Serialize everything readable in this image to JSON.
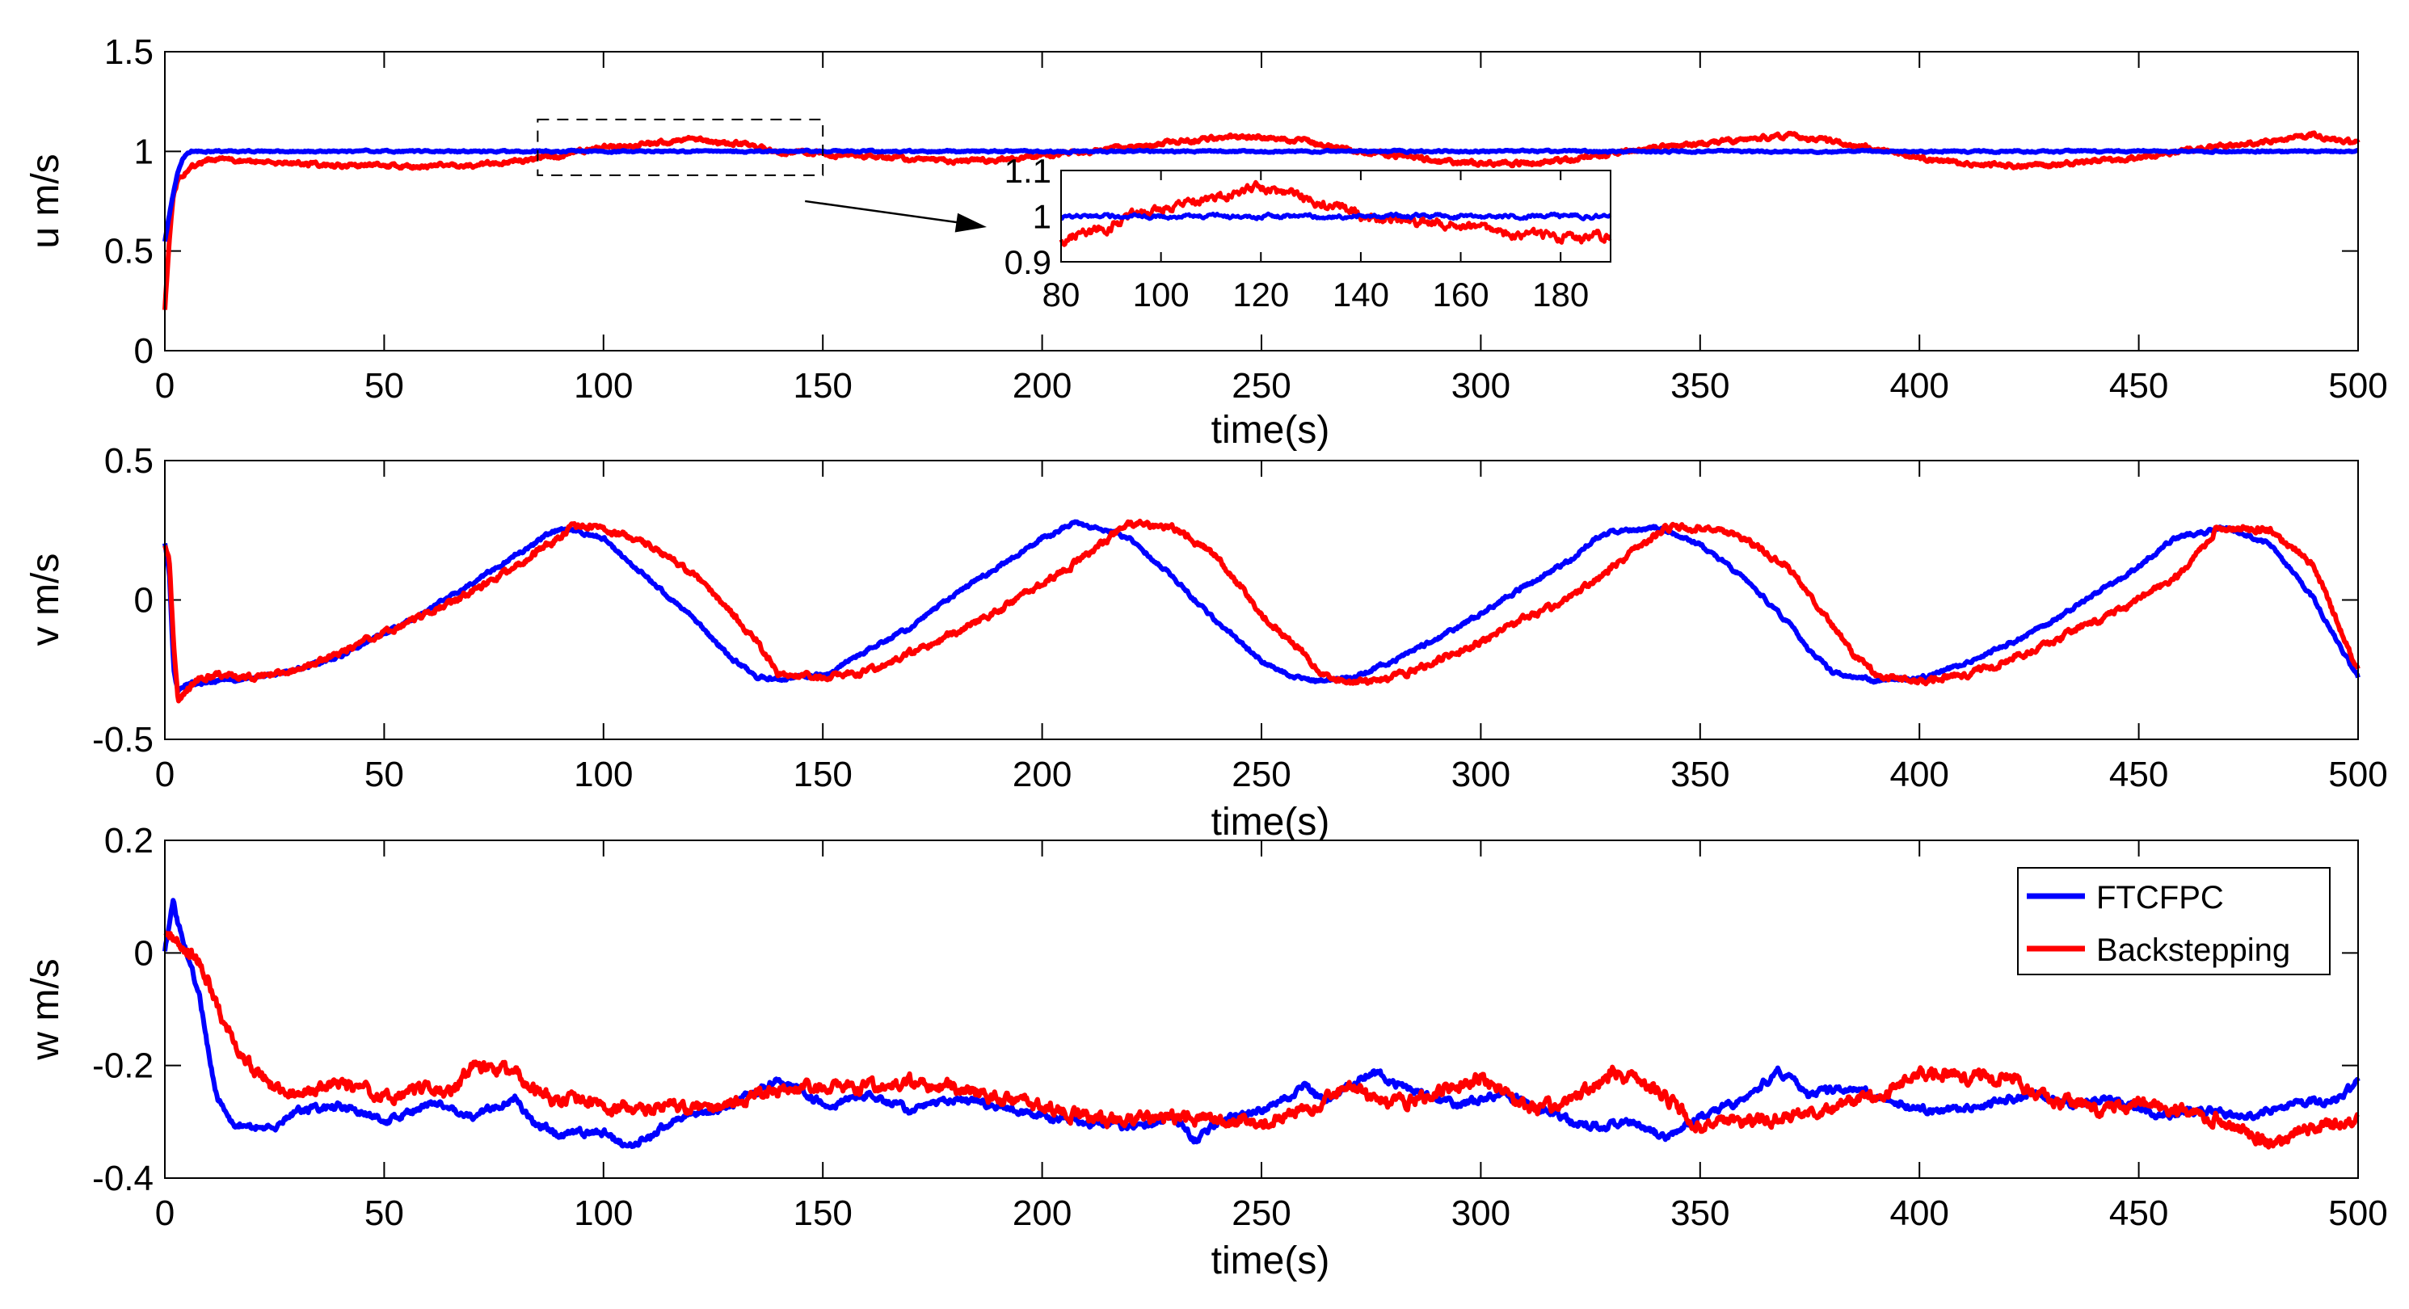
{
  "chart_data": [
    {
      "type": "line",
      "id": "u",
      "title": "",
      "xlabel": "time(s)",
      "ylabel": "u m/s",
      "xlim": [
        0,
        500
      ],
      "ylim": [
        0,
        1.5
      ],
      "xticks": [
        0,
        50,
        100,
        150,
        200,
        250,
        300,
        350,
        400,
        450,
        500
      ],
      "yticks": [
        "0",
        "0.5",
        "1",
        "1.5"
      ],
      "yticks_values": [
        0,
        0.5,
        1,
        1.5
      ],
      "series": [
        {
          "name": "FTCFPC",
          "color": "#0000ff",
          "x": [
            0,
            1,
            2,
            3,
            4,
            5,
            6,
            8,
            10,
            15,
            20,
            30,
            50,
            100,
            150,
            200,
            250,
            300,
            350,
            400,
            450,
            500
          ],
          "y": [
            0.55,
            0.68,
            0.8,
            0.9,
            0.96,
            0.99,
            1.0,
            1.0,
            1.0,
            1.0,
            1.0,
            1.0,
            1.0,
            1.0,
            1.0,
            1.0,
            1.0,
            1.0,
            1.0,
            1.0,
            1.0,
            1.0
          ],
          "noise": 0.004
        },
        {
          "name": "Backstepping",
          "color": "#ff0000",
          "x": [
            0,
            1,
            2,
            3,
            4,
            5,
            6,
            8,
            10,
            15,
            20,
            30,
            40,
            50,
            60,
            70,
            80,
            90,
            100,
            110,
            120,
            130,
            140,
            150,
            160,
            170,
            180,
            190,
            200,
            210,
            220,
            230,
            240,
            250,
            260,
            270,
            280,
            290,
            300,
            310,
            320,
            330,
            340,
            350,
            360,
            370,
            380,
            390,
            400,
            410,
            420,
            430,
            440,
            450,
            460,
            470,
            480,
            490,
            500
          ],
          "y": [
            0.2,
            0.55,
            0.78,
            0.86,
            0.87,
            0.9,
            0.92,
            0.94,
            0.96,
            0.96,
            0.95,
            0.94,
            0.93,
            0.93,
            0.92,
            0.93,
            0.95,
            0.98,
            1.02,
            1.04,
            1.06,
            1.04,
            1.0,
            0.99,
            0.98,
            0.96,
            0.95,
            0.96,
            0.98,
            1.0,
            1.02,
            1.05,
            1.07,
            1.07,
            1.05,
            1.01,
            0.98,
            0.95,
            0.94,
            0.94,
            0.96,
            0.99,
            1.02,
            1.04,
            1.06,
            1.08,
            1.05,
            1.01,
            0.97,
            0.94,
            0.93,
            0.93,
            0.95,
            0.97,
            1.0,
            1.03,
            1.05,
            1.08,
            1.04
          ],
          "noise": 0.01
        }
      ],
      "inset": {
        "xlim": [
          80,
          190
        ],
        "ylim": [
          0.9,
          1.1
        ],
        "xticks": [
          80,
          100,
          120,
          140,
          160,
          180
        ],
        "yticks": [
          "0.9",
          "1",
          "1.1"
        ],
        "yticks_values": [
          0.9,
          1,
          1.1
        ],
        "zoom_box": {
          "x": [
            85,
            150
          ],
          "y": [
            0.88,
            1.16
          ]
        }
      }
    },
    {
      "type": "line",
      "id": "v",
      "title": "",
      "xlabel": "time(s)",
      "ylabel": "v m/s",
      "xlim": [
        0,
        500
      ],
      "ylim": [
        -0.5,
        0.5
      ],
      "xticks": [
        0,
        50,
        100,
        150,
        200,
        250,
        300,
        350,
        400,
        450,
        500
      ],
      "yticks": [
        "-0.5",
        "0",
        "0.5"
      ],
      "yticks_values": [
        -0.5,
        0,
        0.5
      ],
      "series": [
        {
          "name": "FTCFPC",
          "color": "#0000ff",
          "x": [
            0,
            1,
            2,
            3,
            5,
            8,
            12,
            20,
            30,
            40,
            50,
            60,
            70,
            80,
            90,
            100,
            110,
            120,
            130,
            135,
            140,
            150,
            160,
            170,
            180,
            190,
            200,
            208,
            220,
            230,
            240,
            250,
            255,
            260,
            270,
            280,
            290,
            300,
            310,
            320,
            328,
            340,
            350,
            360,
            370,
            375,
            380,
            390,
            400,
            410,
            420,
            430,
            440,
            450,
            458,
            470,
            480,
            490,
            500
          ],
          "y": [
            0.2,
            0.1,
            -0.25,
            -0.33,
            -0.3,
            -0.3,
            -0.29,
            -0.28,
            -0.25,
            -0.2,
            -0.12,
            -0.04,
            0.06,
            0.16,
            0.26,
            0.22,
            0.08,
            -0.06,
            -0.22,
            -0.28,
            -0.28,
            -0.27,
            -0.18,
            -0.1,
            0.02,
            0.12,
            0.22,
            0.28,
            0.22,
            0.08,
            -0.08,
            -0.22,
            -0.26,
            -0.29,
            -0.28,
            -0.22,
            -0.14,
            -0.05,
            0.05,
            0.14,
            0.24,
            0.26,
            0.2,
            0.08,
            -0.08,
            -0.18,
            -0.26,
            -0.29,
            -0.28,
            -0.23,
            -0.16,
            -0.08,
            0.02,
            0.12,
            0.22,
            0.26,
            0.2,
            0.0,
            -0.28
          ],
          "noise": 0.006
        },
        {
          "name": "Backstepping",
          "color": "#ff0000",
          "x": [
            0,
            1,
            2,
            3,
            5,
            8,
            12,
            20,
            30,
            40,
            50,
            60,
            70,
            80,
            93,
            100,
            110,
            120,
            130,
            135,
            140,
            150,
            160,
            170,
            180,
            190,
            200,
            210,
            219,
            230,
            240,
            250,
            260,
            265,
            270,
            280,
            290,
            300,
            310,
            320,
            330,
            342,
            350,
            360,
            370,
            380,
            385,
            390,
            400,
            410,
            420,
            430,
            440,
            450,
            460,
            468,
            480,
            490,
            500
          ],
          "y": [
            0.2,
            0.15,
            -0.15,
            -0.36,
            -0.32,
            -0.28,
            -0.27,
            -0.28,
            -0.25,
            -0.19,
            -0.12,
            -0.05,
            0.03,
            0.12,
            0.26,
            0.26,
            0.2,
            0.1,
            -0.06,
            -0.15,
            -0.27,
            -0.28,
            -0.26,
            -0.19,
            -0.12,
            -0.04,
            0.06,
            0.16,
            0.27,
            0.26,
            0.15,
            -0.05,
            -0.2,
            -0.28,
            -0.3,
            -0.28,
            -0.22,
            -0.15,
            -0.07,
            0.0,
            0.12,
            0.26,
            0.26,
            0.22,
            0.12,
            -0.08,
            -0.2,
            -0.27,
            -0.29,
            -0.27,
            -0.22,
            -0.15,
            -0.08,
            0.0,
            0.1,
            0.26,
            0.25,
            0.12,
            -0.26
          ],
          "noise": 0.01
        }
      ]
    },
    {
      "type": "line",
      "id": "w",
      "title": "",
      "xlabel": "time(s)",
      "ylabel": "w m/s",
      "xlim": [
        0,
        500
      ],
      "ylim": [
        -0.4,
        0.2
      ],
      "xticks": [
        0,
        50,
        100,
        150,
        200,
        250,
        300,
        350,
        400,
        450,
        500
      ],
      "yticks": [
        "-0.4",
        "-0.2",
        "0",
        "0.2"
      ],
      "yticks_values": [
        -0.4,
        -0.2,
        0,
        0.2
      ],
      "legend": {
        "position": "top-right",
        "entries": [
          "FTCFPC",
          "Backstepping"
        ]
      },
      "series": [
        {
          "name": "FTCFPC",
          "color": "#0000ff",
          "x": [
            0,
            1,
            2,
            3,
            5,
            8,
            10,
            12,
            15,
            20,
            25,
            30,
            40,
            50,
            60,
            70,
            80,
            85,
            90,
            100,
            105,
            110,
            115,
            125,
            135,
            140,
            150,
            160,
            170,
            180,
            190,
            200,
            210,
            220,
            230,
            235,
            240,
            250,
            260,
            265,
            275,
            285,
            295,
            305,
            315,
            325,
            335,
            342,
            350,
            360,
            368,
            375,
            385,
            395,
            405,
            415,
            425,
            435,
            445,
            455,
            465,
            475,
            485,
            495,
            500
          ],
          "y": [
            0.0,
            0.05,
            0.09,
            0.05,
            0.0,
            -0.08,
            -0.18,
            -0.26,
            -0.3,
            -0.31,
            -0.31,
            -0.28,
            -0.27,
            -0.3,
            -0.27,
            -0.29,
            -0.26,
            -0.31,
            -0.32,
            -0.32,
            -0.34,
            -0.33,
            -0.3,
            -0.28,
            -0.25,
            -0.22,
            -0.27,
            -0.25,
            -0.28,
            -0.26,
            -0.27,
            -0.29,
            -0.3,
            -0.31,
            -0.29,
            -0.33,
            -0.3,
            -0.28,
            -0.24,
            -0.26,
            -0.21,
            -0.25,
            -0.27,
            -0.25,
            -0.28,
            -0.31,
            -0.3,
            -0.33,
            -0.29,
            -0.26,
            -0.21,
            -0.25,
            -0.24,
            -0.27,
            -0.28,
            -0.27,
            -0.25,
            -0.27,
            -0.26,
            -0.29,
            -0.28,
            -0.29,
            -0.27,
            -0.26,
            -0.23
          ],
          "noise": 0.006
        },
        {
          "name": "Backstepping",
          "color": "#ff0000",
          "x": [
            0,
            2,
            4,
            6,
            8,
            10,
            12,
            15,
            18,
            22,
            25,
            30,
            40,
            50,
            60,
            65,
            70,
            80,
            85,
            90,
            100,
            110,
            115,
            125,
            135,
            150,
            160,
            170,
            180,
            190,
            200,
            210,
            220,
            230,
            240,
            250,
            260,
            270,
            280,
            290,
            300,
            310,
            320,
            330,
            340,
            350,
            360,
            370,
            380,
            390,
            400,
            410,
            420,
            430,
            440,
            450,
            460,
            470,
            480,
            490,
            500
          ],
          "y": [
            0.04,
            0.03,
            0.01,
            0.0,
            -0.02,
            -0.05,
            -0.1,
            -0.15,
            -0.19,
            -0.22,
            -0.24,
            -0.25,
            -0.23,
            -0.26,
            -0.24,
            -0.25,
            -0.2,
            -0.21,
            -0.25,
            -0.26,
            -0.27,
            -0.28,
            -0.27,
            -0.28,
            -0.25,
            -0.24,
            -0.24,
            -0.23,
            -0.24,
            -0.26,
            -0.27,
            -0.29,
            -0.3,
            -0.29,
            -0.3,
            -0.3,
            -0.28,
            -0.24,
            -0.27,
            -0.25,
            -0.22,
            -0.28,
            -0.27,
            -0.21,
            -0.24,
            -0.31,
            -0.3,
            -0.29,
            -0.27,
            -0.26,
            -0.21,
            -0.22,
            -0.22,
            -0.26,
            -0.28,
            -0.27,
            -0.28,
            -0.3,
            -0.34,
            -0.31,
            -0.3
          ],
          "noise": 0.01
        }
      ]
    }
  ]
}
